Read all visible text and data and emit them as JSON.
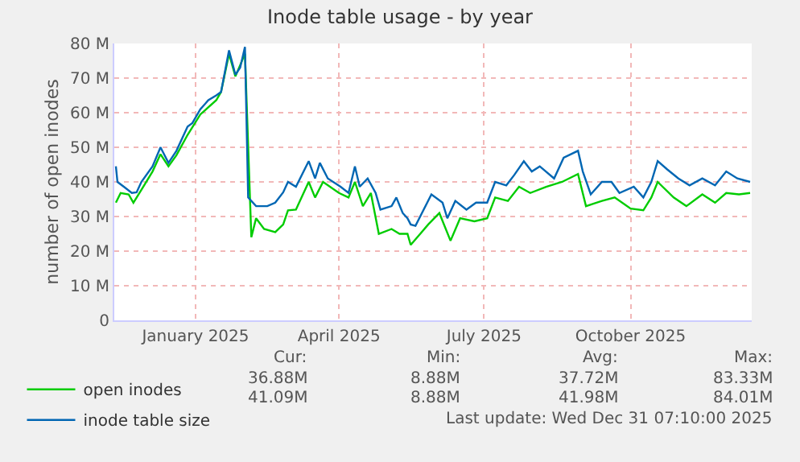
{
  "chart_data": {
    "type": "line",
    "title": "Inode table usage - by year",
    "ylabel": "number of open inodes",
    "xlim": [
      "2024-11-26",
      "2025-12-31"
    ],
    "xticks": [
      {
        "value": "2025-01-16",
        "label": "January 2025"
      },
      {
        "value": "2025-04-16",
        "label": "April 2025"
      },
      {
        "value": "2025-07-16",
        "label": "July 2025"
      },
      {
        "value": "2025-10-16",
        "label": "October 2025"
      }
    ],
    "ylim": [
      0,
      80
    ],
    "yticks": [
      0,
      {
        "value": 10,
        "label": "10 M"
      },
      {
        "value": 20,
        "label": "20 M"
      },
      {
        "value": 30,
        "label": "30 M"
      },
      {
        "value": 40,
        "label": "40 M"
      },
      {
        "value": 50,
        "label": "50 M"
      },
      {
        "value": 60,
        "label": "60 M"
      },
      {
        "value": 70,
        "label": "70 M"
      },
      {
        "value": 80,
        "label": "80 M"
      }
    ],
    "grid": true,
    "legend": "bottom left",
    "marker": "none",
    "line_style": "solid",
    "series": [
      {
        "name": "open inodes",
        "color": "#00cc00",
        "x": [
          "2024-11-27",
          "2024-11-30",
          "2024-12-05",
          "2024-12-08",
          "2024-12-13",
          "2024-12-20",
          "2024-12-25",
          "2024-12-30",
          "2025-01-04",
          "2025-01-11",
          "2025-01-19",
          "2025-01-29",
          "2025-02-01",
          "2025-02-06",
          "2025-02-10",
          "2025-02-16",
          "2025-02-20",
          "2025-02-23",
          "2025-02-28",
          "2025-03-07",
          "2025-03-12",
          "2025-03-15",
          "2025-03-20",
          "2025-03-28",
          "2025-04-01",
          "2025-04-06",
          "2025-04-16",
          "2025-04-22",
          "2025-04-26",
          "2025-05-01",
          "2025-05-06",
          "2025-05-11",
          "2025-05-19",
          "2025-05-24",
          "2025-05-29",
          "2025-05-31",
          "2025-06-06",
          "2025-06-11",
          "2025-06-18",
          "2025-06-25",
          "2025-07-01",
          "2025-07-10",
          "2025-07-18",
          "2025-07-23",
          "2025-07-31",
          "2025-08-07",
          "2025-08-14",
          "2025-08-24",
          "2025-09-03",
          "2025-09-13",
          "2025-09-18",
          "2025-09-28",
          "2025-10-06",
          "2025-10-16",
          "2025-10-24",
          "2025-10-29",
          "2025-11-02",
          "2025-11-12",
          "2025-11-20",
          "2025-11-30",
          "2025-12-08",
          "2025-12-15",
          "2025-12-23",
          "2025-12-30"
        ],
        "values": [
          34,
          36.8,
          36.4,
          34,
          37.7,
          43,
          48,
          44.5,
          47.7,
          53.6,
          59.5,
          63.6,
          66,
          77,
          70.5,
          77,
          24,
          29.5,
          26.4,
          25.5,
          27.7,
          31.8,
          32,
          40,
          35.5,
          40,
          36.8,
          35.5,
          40,
          33,
          36.8,
          25,
          26.4,
          25,
          25,
          21.8,
          25,
          27.7,
          31,
          23,
          29.5,
          28.6,
          29.5,
          35.5,
          34.5,
          38.6,
          36.8,
          38.6,
          40,
          42.3,
          33,
          34.5,
          35.5,
          32.3,
          31.8,
          35.5,
          40,
          35.5,
          33,
          36.4,
          34,
          36.8,
          36.4,
          36.8
        ]
      },
      {
        "name": "inode table size",
        "color": "#0066b3",
        "x": [
          "2024-11-27",
          "2024-11-28",
          "2024-12-02",
          "2024-12-07",
          "2024-12-10",
          "2024-12-13",
          "2024-12-20",
          "2024-12-25",
          "2024-12-30",
          "2025-01-04",
          "2025-01-11",
          "2025-01-14",
          "2025-01-19",
          "2025-01-24",
          "2025-01-29",
          "2025-02-01",
          "2025-02-06",
          "2025-02-10",
          "2025-02-13",
          "2025-02-16",
          "2025-02-18",
          "2025-02-23",
          "2025-03-02",
          "2025-03-07",
          "2025-03-12",
          "2025-03-15",
          "2025-03-20",
          "2025-03-28",
          "2025-04-01",
          "2025-04-04",
          "2025-04-09",
          "2025-04-17",
          "2025-04-22",
          "2025-04-26",
          "2025-04-29",
          "2025-05-04",
          "2025-05-09",
          "2025-05-12",
          "2025-05-19",
          "2025-05-22",
          "2025-05-26",
          "2025-05-29",
          "2025-05-31",
          "2025-06-03",
          "2025-06-13",
          "2025-06-20",
          "2025-06-23",
          "2025-06-28",
          "2025-07-05",
          "2025-07-11",
          "2025-07-18",
          "2025-07-23",
          "2025-07-30",
          "2025-08-04",
          "2025-08-10",
          "2025-08-15",
          "2025-08-20",
          "2025-08-29",
          "2025-09-04",
          "2025-09-13",
          "2025-09-16",
          "2025-09-21",
          "2025-09-28",
          "2025-10-04",
          "2025-10-09",
          "2025-10-18",
          "2025-10-24",
          "2025-10-29",
          "2025-11-02",
          "2025-11-08",
          "2025-11-15",
          "2025-11-22",
          "2025-11-30",
          "2025-12-08",
          "2025-12-15",
          "2025-12-22",
          "2025-12-30"
        ],
        "values": [
          44.5,
          40,
          38.6,
          36.8,
          37,
          40,
          44.5,
          50,
          45.5,
          49,
          56,
          57,
          61,
          63.6,
          65,
          66,
          78,
          71,
          73,
          79,
          35.5,
          33,
          33,
          34,
          37,
          40,
          38.6,
          46,
          41,
          45.5,
          41,
          38.6,
          36.8,
          44.5,
          38.6,
          41,
          36.8,
          32,
          33,
          35.5,
          31,
          29.5,
          27.7,
          27.3,
          36.4,
          34,
          29.5,
          34.5,
          32,
          34,
          34,
          40,
          39,
          42,
          46,
          43,
          44.5,
          41,
          47,
          49,
          43,
          36.4,
          40,
          40,
          36.8,
          38.6,
          35.5,
          40,
          46,
          43.6,
          41,
          39,
          41,
          39,
          43,
          41,
          40
        ]
      }
    ],
    "annotations": [
      "Cur:",
      "Min:",
      "Avg:",
      "Max:",
      "36.88M",
      "8.88M",
      "37.72M",
      "83.33M",
      "41.09M",
      "8.88M",
      "41.98M",
      "84.01M",
      "Last update: Wed Dec 31 07:10:00 2025"
    ]
  }
}
